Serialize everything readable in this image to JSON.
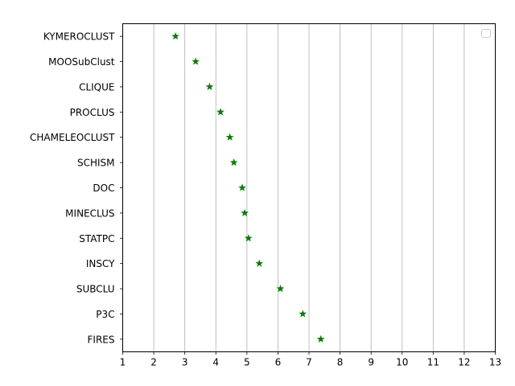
{
  "chart_data": {
    "type": "scatter",
    "title": "",
    "xlabel": "",
    "ylabel": "",
    "xlim": [
      1,
      13
    ],
    "x_ticks": [
      "1",
      "2",
      "3",
      "4",
      "5",
      "6",
      "7",
      "8",
      "9",
      "10",
      "11",
      "12",
      "13"
    ],
    "grid": "vertical",
    "legend": {
      "placement": "top-right",
      "entries": []
    },
    "marker": "star",
    "colors": {
      "marker": "#008000",
      "grid": "#b0b0b0",
      "axes": "#000000"
    },
    "categories": [
      "KYMEROCLUST",
      "MOOSubClust",
      "CLIQUE",
      "PROCLUS",
      "CHAMELEOCLUST",
      "SCHISM",
      "DOC",
      "MINECLUS",
      "STATPC",
      "INSCY",
      "SUBCLU",
      "P3C",
      "FIRES"
    ],
    "values": [
      2.7,
      3.35,
      3.8,
      4.15,
      4.45,
      4.58,
      4.85,
      4.93,
      5.05,
      5.4,
      6.08,
      6.8,
      7.38
    ]
  }
}
